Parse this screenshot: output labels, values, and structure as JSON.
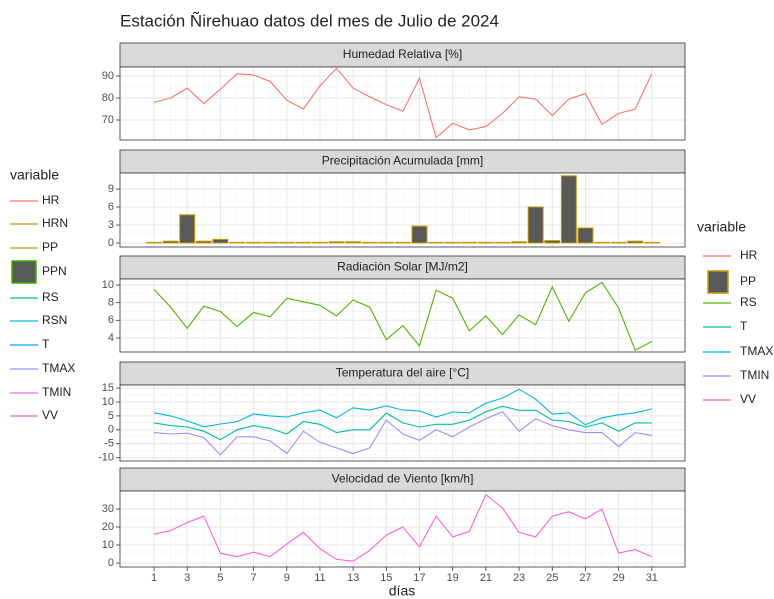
{
  "title": "Estación Ñirehuao datos del mes de Julio de 2024",
  "xlabel": "días",
  "x": [
    1,
    2,
    3,
    4,
    5,
    6,
    7,
    8,
    9,
    10,
    11,
    12,
    13,
    14,
    15,
    16,
    17,
    18,
    19,
    20,
    21,
    22,
    23,
    24,
    25,
    26,
    27,
    28,
    29,
    30,
    31
  ],
  "xlim": [
    -1.05,
    33.0
  ],
  "xticks": [
    1,
    3,
    5,
    7,
    9,
    11,
    13,
    15,
    17,
    19,
    21,
    23,
    25,
    27,
    29,
    31
  ],
  "grid": true,
  "legend_title": "variable",
  "left_legend": {
    "title": "variable",
    "items": [
      {
        "name": "HR",
        "color": "#F8766D",
        "key": "line"
      },
      {
        "name": "HRN",
        "color": "#D89000",
        "key": "line"
      },
      {
        "name": "PP",
        "color": "#A3A500",
        "key": "line"
      },
      {
        "name": "PPN",
        "color": "#39B600",
        "key": "bar"
      },
      {
        "name": "RS",
        "color": "#00BF7D",
        "key": "line"
      },
      {
        "name": "RSN",
        "color": "#00BFC4",
        "key": "line"
      },
      {
        "name": "T",
        "color": "#00B0F6",
        "key": "line"
      },
      {
        "name": "TMAX",
        "color": "#9590FF",
        "key": "line"
      },
      {
        "name": "TMIN",
        "color": "#E76BF3",
        "key": "line"
      },
      {
        "name": "VV",
        "color": "#FF62BC",
        "key": "line"
      }
    ]
  },
  "chart_data": [
    {
      "type": "line",
      "title": "Humedad Relativa [%]",
      "ylim": [
        60.9,
        94.1
      ],
      "yticks": [
        70,
        80,
        90
      ],
      "series": [
        {
          "name": "HR",
          "color": "#F8766D",
          "values": [
            78,
            80,
            84.5,
            77.5,
            84,
            91,
            90.5,
            87.5,
            79,
            75,
            85.5,
            93.5,
            84.5,
            80.5,
            77,
            74,
            89,
            62,
            68.5,
            65.5,
            67,
            73,
            80.5,
            79.5,
            72,
            79.5,
            82,
            68,
            73,
            75,
            91
          ]
        }
      ]
    },
    {
      "type": "bar",
      "title": "Precipitación Acumulada [mm]",
      "ylim": [
        -0.67,
        11.67
      ],
      "yticks": [
        0,
        3,
        6,
        9
      ],
      "series": [
        {
          "name": "PP",
          "color": "#595959",
          "border": "#C49A00",
          "values": [
            0.1,
            0.3,
            4.7,
            0.3,
            0.6,
            0.1,
            0.1,
            0.1,
            0.1,
            0.1,
            0.1,
            0.2,
            0.2,
            0.1,
            0.1,
            0.1,
            2.8,
            0.1,
            0.1,
            0.1,
            0.1,
            0.1,
            0.2,
            6,
            0.4,
            11.2,
            2.5,
            0.1,
            0.1,
            0.3,
            0.1
          ]
        }
      ]
    },
    {
      "type": "line",
      "title": "Radiación Solar [MJ/m2]",
      "ylim": [
        2.41,
        10.68
      ],
      "yticks": [
        4,
        6,
        8,
        10
      ],
      "series": [
        {
          "name": "RS",
          "color": "#53B400",
          "values": [
            9.5,
            7.5,
            5.1,
            7.6,
            7,
            5.3,
            6.9,
            6.4,
            8.5,
            8.1,
            7.7,
            6.5,
            8.3,
            7.5,
            3.8,
            5.4,
            3.1,
            9.4,
            8.5,
            4.8,
            6.5,
            4.4,
            6.6,
            5.5,
            9.8,
            5.9,
            9.1,
            10.3,
            7.4,
            2.6,
            3.6
          ]
        }
      ]
    },
    {
      "type": "line",
      "title": "Temperatura del aire [°C]",
      "ylim": [
        -11.2,
        16.1
      ],
      "yticks": [
        -10,
        -5,
        0,
        5,
        10,
        15
      ],
      "series": [
        {
          "name": "T",
          "color": "#00C094",
          "values": [
            2.5,
            1.5,
            1,
            -0.5,
            -3.5,
            0,
            1.5,
            0.5,
            -1.5,
            3,
            2,
            -1,
            0,
            0,
            6,
            2.5,
            1,
            2,
            2,
            3.5,
            6.5,
            8.5,
            7,
            7,
            3.5,
            3,
            1,
            2.5,
            -0.5,
            2.5,
            2.5
          ]
        },
        {
          "name": "TMAX",
          "color": "#00B6EB",
          "values": [
            6.1,
            5,
            3.2,
            1.1,
            2.1,
            2.9,
            5.7,
            5,
            4.6,
            6.1,
            7.1,
            4.3,
            7.9,
            7.1,
            8.6,
            7.1,
            6.8,
            4.6,
            6.4,
            6.1,
            9.6,
            11.4,
            14.6,
            11,
            5.7,
            6.1,
            1.8,
            4.3,
            5.4,
            6.1,
            7.5
          ]
        },
        {
          "name": "TMIN",
          "color": "#A58AFF",
          "values": [
            -1,
            -1.5,
            -1.2,
            -2.8,
            -9,
            -2.5,
            -2.5,
            -4,
            -8.5,
            -0.5,
            -4.5,
            -6.5,
            -8.5,
            -6.5,
            3.5,
            -1.5,
            -3.8,
            0,
            -2.5,
            1,
            4,
            6.5,
            -0.5,
            4,
            1.5,
            0,
            -1,
            -1,
            -6,
            -1,
            -2
          ]
        }
      ]
    },
    {
      "type": "line",
      "title": "Velocidad de Viento [km/h]",
      "ylim": [
        -2.2,
        40
      ],
      "yticks": [
        0,
        10,
        20,
        30
      ],
      "series": [
        {
          "name": "VV",
          "color": "#FB61D7",
          "values": [
            16,
            18,
            22.5,
            26,
            5.5,
            3.5,
            6,
            3.5,
            10.5,
            17,
            8,
            2,
            1,
            7,
            15.5,
            20,
            9,
            26,
            14.5,
            17.5,
            38,
            30.5,
            17,
            14.5,
            26,
            28.5,
            24.5,
            30,
            5.5,
            7.5,
            3.5
          ]
        }
      ]
    }
  ]
}
